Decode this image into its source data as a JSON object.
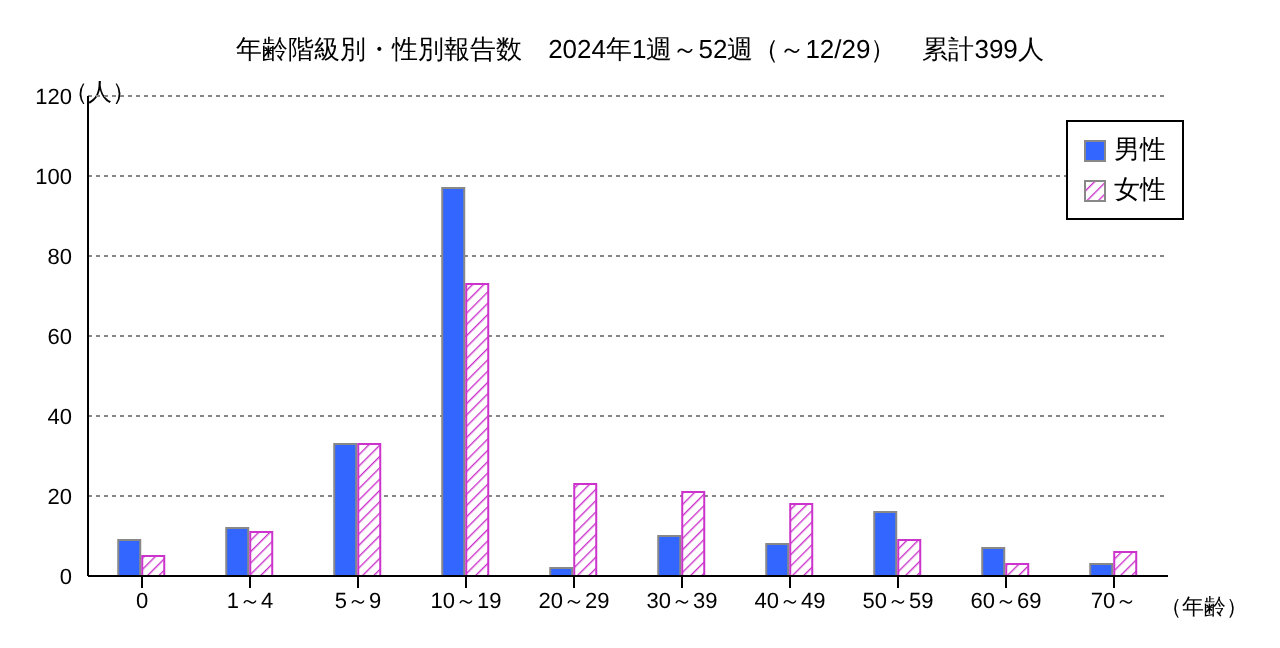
{
  "chart_data": {
    "type": "bar",
    "title": "年齢階級別・性別報告数　2024年1週～52週（～12/29）　累計399人",
    "xlabel": "（年齢）",
    "ylabel": "（人）",
    "categories": [
      "0",
      "1～4",
      "5～9",
      "10～19",
      "20～29",
      "30～39",
      "40～49",
      "50～59",
      "60～69",
      "70～"
    ],
    "series": [
      {
        "name": "男性",
        "color": "#3366ff",
        "values": [
          9,
          12,
          33,
          97,
          2,
          10,
          8,
          16,
          7,
          3
        ]
      },
      {
        "name": "女性",
        "color": "#cc33cc",
        "values": [
          5,
          11,
          33,
          73,
          23,
          21,
          18,
          9,
          3,
          6
        ]
      }
    ],
    "ylim": [
      0,
      120
    ],
    "yticks": [
      0,
      20,
      40,
      60,
      80,
      100,
      120
    ],
    "grid": "y",
    "legend": "top right"
  }
}
